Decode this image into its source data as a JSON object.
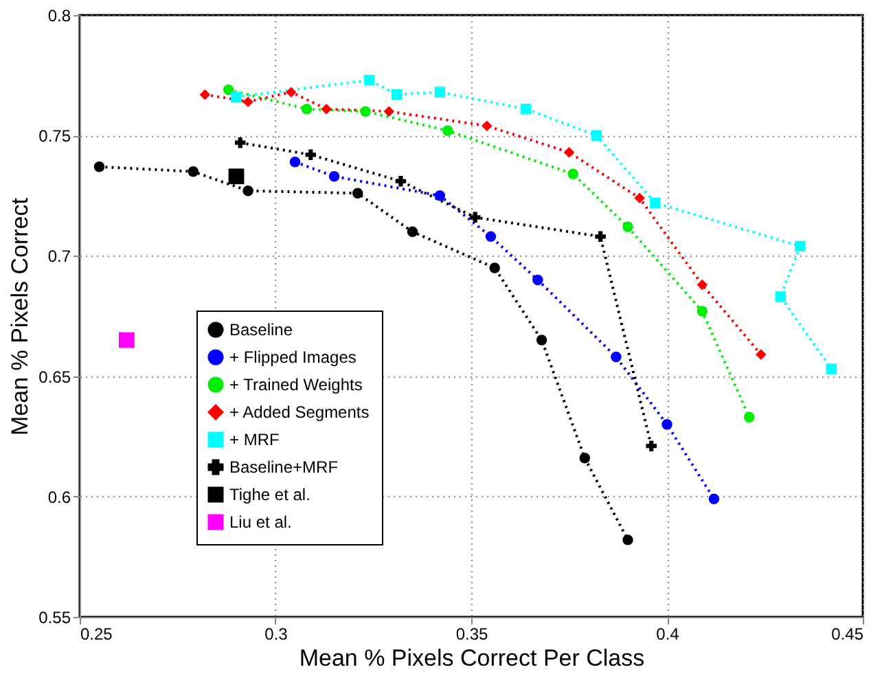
{
  "chart_data": {
    "type": "line",
    "xlabel": "Mean % Pixels Correct Per Class",
    "ylabel": "Mean % Pixels Correct",
    "xlim": [
      0.25,
      0.45
    ],
    "xticks": [
      0.25,
      0.3,
      0.35,
      0.4,
      0.45
    ],
    "ylim": [
      0.55,
      0.8
    ],
    "yticks": [
      0.55,
      0.6,
      0.65,
      0.7,
      0.75,
      0.8
    ],
    "grid": true,
    "legend": "bottom left",
    "line_style": "dotted",
    "series": [
      {
        "name": "Baseline",
        "color": "#000000",
        "marker": "circle",
        "x": [
          0.255,
          0.279,
          0.293,
          0.321,
          0.335,
          0.356,
          0.368,
          0.379,
          0.39
        ],
        "values": [
          0.737,
          0.735,
          0.727,
          0.726,
          0.71,
          0.695,
          0.665,
          0.616,
          0.582
        ]
      },
      {
        "name": "+ Flipped Images",
        "color": "#0000ff",
        "marker": "circle",
        "x": [
          0.305,
          0.315,
          0.342,
          0.355,
          0.367,
          0.387,
          0.4,
          0.412
        ],
        "values": [
          0.739,
          0.733,
          0.725,
          0.708,
          0.69,
          0.658,
          0.63,
          0.599
        ]
      },
      {
        "name": "+ Trained Weights",
        "color": "#00ee00",
        "marker": "circle",
        "x": [
          0.288,
          0.308,
          0.323,
          0.344,
          0.376,
          0.39,
          0.409,
          0.421
        ],
        "values": [
          0.769,
          0.761,
          0.76,
          0.752,
          0.734,
          0.712,
          0.677,
          0.633
        ]
      },
      {
        "name": "+ Added Segments",
        "color": "#ff0000",
        "marker": "diamond",
        "x": [
          0.282,
          0.293,
          0.304,
          0.313,
          0.329,
          0.354,
          0.375,
          0.393,
          0.409,
          0.424
        ],
        "values": [
          0.767,
          0.764,
          0.768,
          0.761,
          0.76,
          0.754,
          0.743,
          0.724,
          0.688,
          0.659
        ]
      },
      {
        "name": "+ MRF",
        "color": "#00ffff",
        "marker": "square",
        "x": [
          0.29,
          0.324,
          0.331,
          0.342,
          0.364,
          0.382,
          0.397,
          0.434,
          0.429,
          0.442
        ],
        "values": [
          0.766,
          0.773,
          0.767,
          0.768,
          0.761,
          0.75,
          0.722,
          0.704,
          0.683,
          0.653
        ]
      },
      {
        "name": "Baseline+MRF",
        "color": "#000000",
        "marker": "cross",
        "x": [
          0.291,
          0.309,
          0.332,
          0.351,
          0.383,
          0.396
        ],
        "values": [
          0.747,
          0.742,
          0.731,
          0.716,
          0.708,
          0.621
        ]
      },
      {
        "name": "Tighe et al.",
        "type": "scatter",
        "color": "#000000",
        "marker": "square",
        "x": [
          0.29
        ],
        "values": [
          0.733
        ]
      },
      {
        "name": "Liu et al.",
        "type": "scatter",
        "color": "#ff00ff",
        "marker": "square",
        "x": [
          0.262
        ],
        "values": [
          0.665
        ]
      }
    ]
  }
}
